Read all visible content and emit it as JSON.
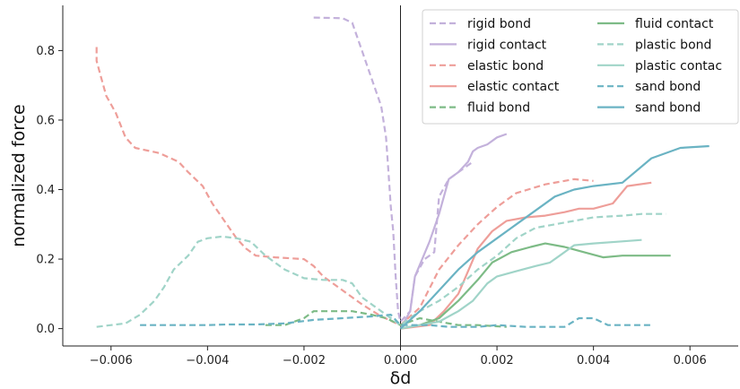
{
  "chart_data": {
    "type": "line",
    "title": "",
    "xlabel": "δd",
    "ylabel": "normalized force",
    "xlim": [
      -0.007,
      0.007
    ],
    "ylim": [
      -0.05,
      0.93
    ],
    "xticks": [
      {
        "value": -0.006,
        "label": "−0.006"
      },
      {
        "value": -0.004,
        "label": "−0.004"
      },
      {
        "value": -0.002,
        "label": "−0.002"
      },
      {
        "value": 0.0,
        "label": "0.000"
      },
      {
        "value": 0.002,
        "label": "0.002"
      },
      {
        "value": 0.004,
        "label": "0.004"
      },
      {
        "value": 0.006,
        "label": "0.006"
      }
    ],
    "yticks": [
      {
        "value": 0.0,
        "label": "0.0"
      },
      {
        "value": 0.2,
        "label": "0.2"
      },
      {
        "value": 0.4,
        "label": "0.4"
      },
      {
        "value": 0.6,
        "label": "0.6"
      },
      {
        "value": 0.8,
        "label": "0.8"
      }
    ],
    "grid": false,
    "legend_position": "top-right",
    "legend_columns": 2,
    "series": [
      {
        "name": "rigid bond",
        "color": "#c3b1db",
        "dash": true,
        "points": [
          [
            -0.0018,
            0.895
          ],
          [
            -0.0012,
            0.893
          ],
          [
            -0.001,
            0.88
          ],
          [
            -0.0008,
            0.8
          ],
          [
            -0.0006,
            0.72
          ],
          [
            -0.0004,
            0.64
          ],
          [
            -0.0003,
            0.55
          ],
          [
            -0.00025,
            0.45
          ],
          [
            -0.0002,
            0.35
          ],
          [
            -0.00015,
            0.28
          ],
          [
            -0.0001,
            0.15
          ],
          [
            -5e-05,
            0.05
          ],
          [
            0.0,
            0.02
          ],
          [
            0.0002,
            0.05
          ],
          [
            0.0003,
            0.15
          ],
          [
            0.0005,
            0.2
          ],
          [
            0.0007,
            0.22
          ],
          [
            0.0008,
            0.38
          ],
          [
            0.001,
            0.43
          ],
          [
            0.0012,
            0.45
          ],
          [
            0.0014,
            0.47
          ],
          [
            0.0015,
            0.48
          ]
        ]
      },
      {
        "name": "rigid contact",
        "color": "#c3b1db",
        "dash": false,
        "points": [
          [
            0.0,
            0.0
          ],
          [
            0.0002,
            0.05
          ],
          [
            0.0003,
            0.15
          ],
          [
            0.0006,
            0.25
          ],
          [
            0.0008,
            0.33
          ],
          [
            0.0009,
            0.38
          ],
          [
            0.001,
            0.43
          ],
          [
            0.0012,
            0.45
          ],
          [
            0.0014,
            0.48
          ],
          [
            0.0015,
            0.51
          ],
          [
            0.0016,
            0.52
          ],
          [
            0.0018,
            0.53
          ],
          [
            0.002,
            0.55
          ],
          [
            0.0022,
            0.56
          ]
        ]
      },
      {
        "name": "elastic bond",
        "color": "#ee9e99",
        "dash": true,
        "points": [
          [
            -0.0063,
            0.81
          ],
          [
            -0.0063,
            0.77
          ],
          [
            -0.0062,
            0.72
          ],
          [
            -0.0061,
            0.67
          ],
          [
            -0.0059,
            0.62
          ],
          [
            -0.0057,
            0.55
          ],
          [
            -0.0055,
            0.52
          ],
          [
            -0.005,
            0.505
          ],
          [
            -0.0046,
            0.48
          ],
          [
            -0.0044,
            0.45
          ],
          [
            -0.0041,
            0.41
          ],
          [
            -0.0039,
            0.36
          ],
          [
            -0.0036,
            0.3
          ],
          [
            -0.0034,
            0.26
          ],
          [
            -0.0032,
            0.23
          ],
          [
            -0.003,
            0.21
          ],
          [
            -0.0026,
            0.205
          ],
          [
            -0.002,
            0.2
          ],
          [
            -0.0018,
            0.18
          ],
          [
            -0.0016,
            0.15
          ],
          [
            -0.0012,
            0.11
          ],
          [
            -0.0008,
            0.07
          ],
          [
            -0.0004,
            0.035
          ],
          [
            0.0,
            0.01
          ],
          [
            0.0004,
            0.06
          ],
          [
            0.0008,
            0.17
          ],
          [
            0.0012,
            0.24
          ],
          [
            0.0016,
            0.3
          ],
          [
            0.002,
            0.35
          ],
          [
            0.0024,
            0.39
          ],
          [
            0.003,
            0.415
          ],
          [
            0.0036,
            0.43
          ],
          [
            0.004,
            0.425
          ]
        ]
      },
      {
        "name": "elastic contact",
        "color": "#ee9e99",
        "dash": false,
        "points": [
          [
            0.0,
            0.0
          ],
          [
            0.0006,
            0.01
          ],
          [
            0.0009,
            0.05
          ],
          [
            0.0012,
            0.1
          ],
          [
            0.0016,
            0.23
          ],
          [
            0.0019,
            0.28
          ],
          [
            0.0022,
            0.31
          ],
          [
            0.0026,
            0.32
          ],
          [
            0.003,
            0.325
          ],
          [
            0.0034,
            0.335
          ],
          [
            0.0037,
            0.345
          ],
          [
            0.004,
            0.345
          ],
          [
            0.0044,
            0.36
          ],
          [
            0.0047,
            0.41
          ],
          [
            0.0052,
            0.42
          ]
        ]
      },
      {
        "name": "fluid bond",
        "color": "#7dbb86",
        "dash": true,
        "points": [
          [
            -0.0028,
            0.01
          ],
          [
            -0.0024,
            0.01
          ],
          [
            -0.002,
            0.03
          ],
          [
            -0.0018,
            0.05
          ],
          [
            -0.0014,
            0.05
          ],
          [
            -0.001,
            0.05
          ],
          [
            -0.0006,
            0.04
          ],
          [
            -0.0003,
            0.03
          ],
          [
            0.0,
            0.01
          ],
          [
            0.0004,
            0.03
          ],
          [
            0.0008,
            0.02
          ],
          [
            0.0012,
            0.01
          ],
          [
            0.0016,
            0.01
          ],
          [
            0.0022,
            0.005
          ]
        ]
      },
      {
        "name": "fluid contact",
        "color": "#7dbb86",
        "dash": false,
        "points": [
          [
            0.0,
            0.0
          ],
          [
            0.0004,
            0.01
          ],
          [
            0.0008,
            0.03
          ],
          [
            0.0012,
            0.08
          ],
          [
            0.0016,
            0.14
          ],
          [
            0.0019,
            0.19
          ],
          [
            0.0023,
            0.22
          ],
          [
            0.0027,
            0.235
          ],
          [
            0.003,
            0.245
          ],
          [
            0.0034,
            0.235
          ],
          [
            0.0038,
            0.22
          ],
          [
            0.0042,
            0.205
          ],
          [
            0.0046,
            0.21
          ],
          [
            0.005,
            0.21
          ],
          [
            0.0056,
            0.21
          ]
        ]
      },
      {
        "name": "plastic bond",
        "color": "#a0d4c8",
        "dash": true,
        "points": [
          [
            -0.0063,
            0.005
          ],
          [
            -0.006,
            0.01
          ],
          [
            -0.0057,
            0.015
          ],
          [
            -0.0054,
            0.04
          ],
          [
            -0.0051,
            0.08
          ],
          [
            -0.0049,
            0.12
          ],
          [
            -0.0047,
            0.17
          ],
          [
            -0.0044,
            0.21
          ],
          [
            -0.0042,
            0.25
          ],
          [
            -0.004,
            0.26
          ],
          [
            -0.0037,
            0.265
          ],
          [
            -0.0034,
            0.26
          ],
          [
            -0.0031,
            0.25
          ],
          [
            -0.0028,
            0.21
          ],
          [
            -0.0024,
            0.17
          ],
          [
            -0.002,
            0.145
          ],
          [
            -0.0016,
            0.14
          ],
          [
            -0.0012,
            0.14
          ],
          [
            -0.001,
            0.13
          ],
          [
            -0.0008,
            0.09
          ],
          [
            -0.0004,
            0.05
          ],
          [
            0.0,
            0.01
          ],
          [
            0.0004,
            0.05
          ],
          [
            0.0008,
            0.08
          ],
          [
            0.0012,
            0.12
          ],
          [
            0.0016,
            0.17
          ],
          [
            0.002,
            0.21
          ],
          [
            0.0024,
            0.26
          ],
          [
            0.0028,
            0.29
          ],
          [
            0.0032,
            0.3
          ],
          [
            0.0036,
            0.31
          ],
          [
            0.004,
            0.32
          ],
          [
            0.0046,
            0.325
          ],
          [
            0.005,
            0.33
          ],
          [
            0.0055,
            0.33
          ]
        ]
      },
      {
        "name": "plastic contac",
        "color": "#a0d4c8",
        "dash": false,
        "points": [
          [
            0.0,
            0.0
          ],
          [
            0.0004,
            0.01
          ],
          [
            0.0008,
            0.02
          ],
          [
            0.0012,
            0.05
          ],
          [
            0.0015,
            0.08
          ],
          [
            0.0018,
            0.13
          ],
          [
            0.002,
            0.15
          ],
          [
            0.0024,
            0.165
          ],
          [
            0.0028,
            0.18
          ],
          [
            0.0031,
            0.19
          ],
          [
            0.0033,
            0.21
          ],
          [
            0.0036,
            0.24
          ],
          [
            0.004,
            0.245
          ],
          [
            0.0045,
            0.25
          ],
          [
            0.005,
            0.255
          ]
        ]
      },
      {
        "name": "sand bond",
        "color": "#6ab3c3",
        "dash": true,
        "points": [
          [
            -0.0054,
            0.01
          ],
          [
            -0.0046,
            0.01
          ],
          [
            -0.004,
            0.01
          ],
          [
            -0.0036,
            0.012
          ],
          [
            -0.003,
            0.012
          ],
          [
            -0.0024,
            0.015
          ],
          [
            -0.0018,
            0.025
          ],
          [
            -0.0012,
            0.03
          ],
          [
            -0.0006,
            0.035
          ],
          [
            -0.0002,
            0.04
          ],
          [
            0.0,
            0.01
          ],
          [
            0.0006,
            0.01
          ],
          [
            0.001,
            0.005
          ],
          [
            0.0016,
            0.005
          ],
          [
            0.002,
            0.01
          ],
          [
            0.0026,
            0.005
          ],
          [
            0.0034,
            0.005
          ],
          [
            0.0037,
            0.03
          ],
          [
            0.004,
            0.03
          ],
          [
            0.0043,
            0.01
          ],
          [
            0.0048,
            0.01
          ],
          [
            0.0052,
            0.01
          ]
        ]
      },
      {
        "name": "sand bond",
        "color": "#6ab3c3",
        "dash": false,
        "points": [
          [
            0.0,
            0.0
          ],
          [
            0.0004,
            0.05
          ],
          [
            0.0008,
            0.11
          ],
          [
            0.0012,
            0.17
          ],
          [
            0.0016,
            0.22
          ],
          [
            0.002,
            0.26
          ],
          [
            0.0024,
            0.3
          ],
          [
            0.0028,
            0.34
          ],
          [
            0.0032,
            0.38
          ],
          [
            0.0036,
            0.4
          ],
          [
            0.004,
            0.41
          ],
          [
            0.0046,
            0.42
          ],
          [
            0.0052,
            0.49
          ],
          [
            0.0058,
            0.52
          ],
          [
            0.0064,
            0.525
          ]
        ]
      }
    ]
  }
}
